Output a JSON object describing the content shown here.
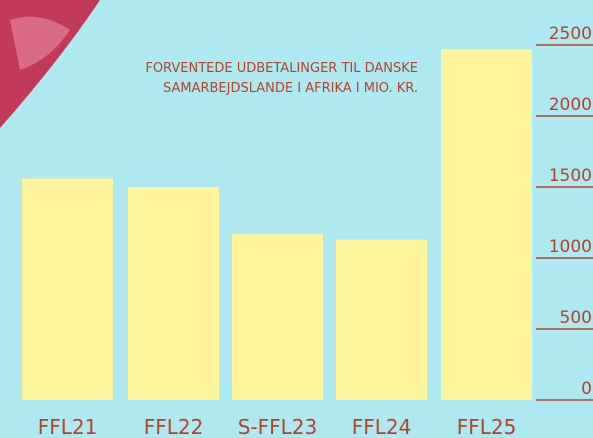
{
  "chart_data": {
    "type": "bar",
    "title_lines": [
      "FORVENTEDE UDBETALINGER TIL DANSKE",
      "SAMARBEJDSLANDE I AFRIKA I MIO. KR."
    ],
    "categories": [
      "FFL21",
      "FFL22",
      "S-FFL23",
      "FFL24",
      "FFL25"
    ],
    "values": [
      1560,
      1500,
      1170,
      1130,
      2470
    ],
    "color": "#fff59d",
    "ylim": [
      0,
      2500
    ],
    "yticks": [
      0,
      500,
      1000,
      1500,
      2000,
      2500
    ]
  }
}
